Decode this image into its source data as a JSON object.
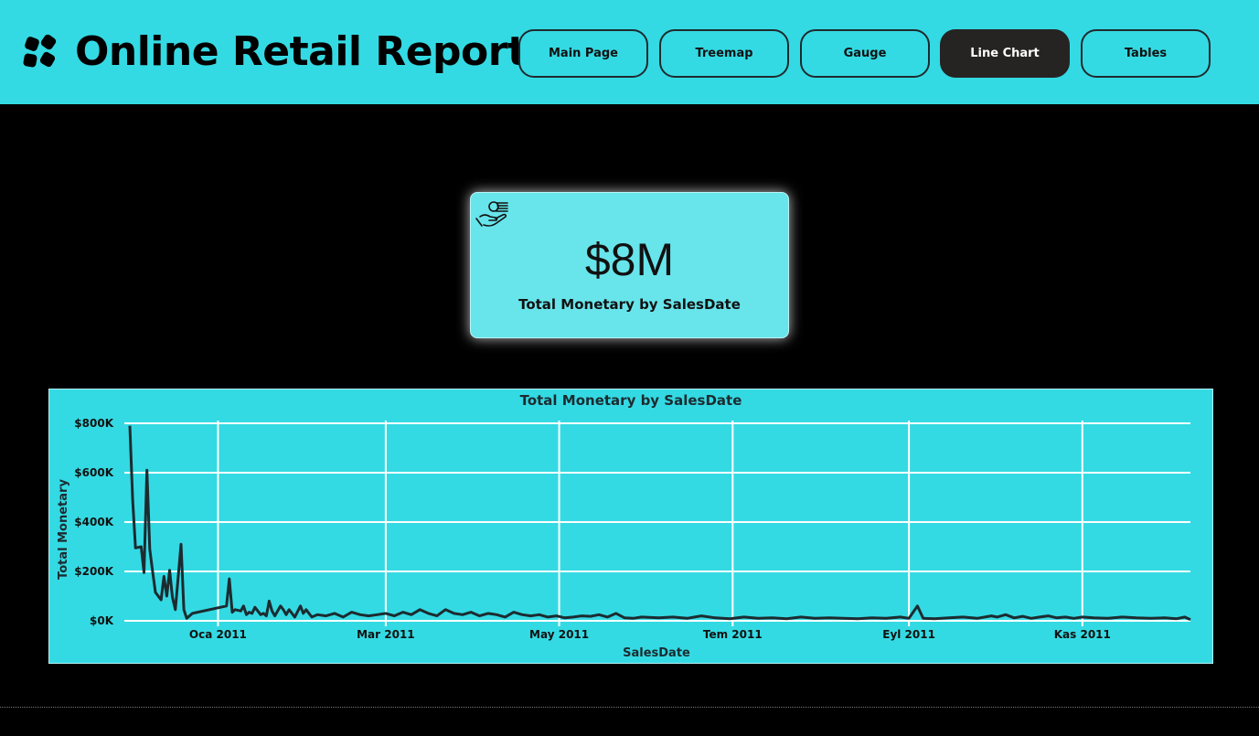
{
  "app": {
    "title": "Online Retail Report",
    "logo_icon": "four-petal-logo-icon"
  },
  "nav": [
    {
      "label": "Main Page",
      "active": false
    },
    {
      "label": "Treemap",
      "active": false
    },
    {
      "label": "Gauge",
      "active": false
    },
    {
      "label": "Line Chart",
      "active": true
    },
    {
      "label": "Tables",
      "active": false
    }
  ],
  "kpi": {
    "icon": "hand-with-money-icon",
    "value": "$8M",
    "label": "Total Monetary by SalesDate"
  },
  "colors": {
    "header_bg": "#34dae3",
    "page_bg": "#000000",
    "card_bg": "#67e5eb",
    "active_button": "#252423",
    "line": "#1c2b30"
  },
  "chart_data": {
    "type": "line",
    "title": "Total Monetary by SalesDate",
    "xlabel": "SalesDate",
    "ylabel": "Total Monetary",
    "x_ticks": [
      "Oca 2011",
      "Mar 2011",
      "May 2011",
      "Tem 2011",
      "Eyl 2011",
      "Kas 2011"
    ],
    "y_ticks": [
      "$0K",
      "$200K",
      "$400K",
      "$600K",
      "$800K"
    ],
    "ylim": [
      0,
      800000
    ],
    "xlim": [
      "2010-12-01",
      "2011-12-09"
    ],
    "grid": true,
    "series": [
      {
        "x": [
          "2010-12-01",
          "2010-12-02",
          "2010-12-03",
          "2010-12-05",
          "2010-12-06",
          "2010-12-07",
          "2010-12-08",
          "2010-12-09",
          "2010-12-10",
          "2010-12-12",
          "2010-12-13",
          "2010-12-14",
          "2010-12-15",
          "2010-12-16",
          "2010-12-17",
          "2010-12-19",
          "2010-12-20",
          "2010-12-21",
          "2010-12-22",
          "2010-12-23",
          "2011-01-04",
          "2011-01-05",
          "2011-01-06",
          "2011-01-07",
          "2011-01-09",
          "2011-01-10",
          "2011-01-11",
          "2011-01-12",
          "2011-01-13",
          "2011-01-14",
          "2011-01-16",
          "2011-01-17",
          "2011-01-18",
          "2011-01-19",
          "2011-01-20",
          "2011-01-21",
          "2011-01-23",
          "2011-01-24",
          "2011-01-25",
          "2011-01-26",
          "2011-01-27",
          "2011-01-28",
          "2011-01-30",
          "2011-01-31",
          "2011-02-01",
          "2011-02-03",
          "2011-02-05",
          "2011-02-08",
          "2011-02-11",
          "2011-02-14",
          "2011-02-17",
          "2011-02-20",
          "2011-02-23",
          "2011-02-26",
          "2011-03-01",
          "2011-03-04",
          "2011-03-07",
          "2011-03-10",
          "2011-03-13",
          "2011-03-16",
          "2011-03-19",
          "2011-03-22",
          "2011-03-25",
          "2011-03-28",
          "2011-03-31",
          "2011-04-03",
          "2011-04-06",
          "2011-04-09",
          "2011-04-12",
          "2011-04-15",
          "2011-04-18",
          "2011-04-21",
          "2011-04-24",
          "2011-04-27",
          "2011-04-30",
          "2011-05-03",
          "2011-05-06",
          "2011-05-09",
          "2011-05-12",
          "2011-05-15",
          "2011-05-18",
          "2011-05-21",
          "2011-05-24",
          "2011-05-27",
          "2011-05-30",
          "2011-06-05",
          "2011-06-10",
          "2011-06-15",
          "2011-06-20",
          "2011-06-25",
          "2011-06-30",
          "2011-07-05",
          "2011-07-10",
          "2011-07-15",
          "2011-07-20",
          "2011-07-25",
          "2011-07-30",
          "2011-08-04",
          "2011-08-09",
          "2011-08-14",
          "2011-08-19",
          "2011-08-24",
          "2011-08-29",
          "2011-09-01",
          "2011-09-04",
          "2011-09-06",
          "2011-09-10",
          "2011-09-15",
          "2011-09-20",
          "2011-09-25",
          "2011-09-30",
          "2011-10-02",
          "2011-10-05",
          "2011-10-08",
          "2011-10-11",
          "2011-10-14",
          "2011-10-17",
          "2011-10-20",
          "2011-10-23",
          "2011-10-26",
          "2011-10-29",
          "2011-11-01",
          "2011-11-05",
          "2011-11-10",
          "2011-11-15",
          "2011-11-20",
          "2011-11-25",
          "2011-11-30",
          "2011-12-04",
          "2011-12-07",
          "2011-12-09"
        ],
        "y": [
          790000,
          490000,
          295000,
          300000,
          195000,
          610000,
          290000,
          200000,
          115000,
          85000,
          180000,
          100000,
          205000,
          95000,
          45000,
          310000,
          45000,
          10000,
          20000,
          30000,
          60000,
          170000,
          35000,
          45000,
          40000,
          60000,
          25000,
          35000,
          30000,
          55000,
          25000,
          30000,
          20000,
          80000,
          40000,
          20000,
          60000,
          45000,
          25000,
          45000,
          30000,
          15000,
          60000,
          30000,
          45000,
          15000,
          25000,
          20000,
          30000,
          15000,
          35000,
          25000,
          20000,
          25000,
          30000,
          20000,
          35000,
          25000,
          45000,
          30000,
          20000,
          45000,
          30000,
          25000,
          35000,
          20000,
          30000,
          25000,
          15000,
          35000,
          25000,
          20000,
          25000,
          15000,
          20000,
          12000,
          15000,
          20000,
          18000,
          25000,
          15000,
          30000,
          12000,
          10000,
          15000,
          12000,
          15000,
          10000,
          20000,
          12000,
          8000,
          15000,
          10000,
          12000,
          8000,
          15000,
          10000,
          12000,
          10000,
          8000,
          12000,
          10000,
          15000,
          10000,
          60000,
          10000,
          8000,
          12000,
          15000,
          10000,
          20000,
          15000,
          25000,
          12000,
          18000,
          10000,
          15000,
          20000,
          12000,
          15000,
          10000,
          15000,
          12000,
          10000,
          15000,
          12000,
          10000,
          12000,
          8000,
          15000,
          5000
        ]
      }
    ]
  }
}
